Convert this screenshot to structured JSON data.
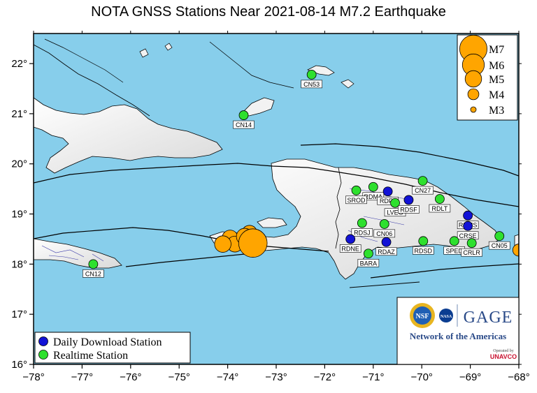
{
  "title": "NOTA GNSS Stations Near 2021-08-14 M7.2 Earthquake",
  "map": {
    "lon_range": [
      -78,
      -68
    ],
    "lat_range": [
      16,
      22.6
    ],
    "x_ticks": [
      {
        "value": -78,
        "label": "−78°"
      },
      {
        "value": -77,
        "label": "−77°"
      },
      {
        "value": -76,
        "label": "−76°"
      },
      {
        "value": -75,
        "label": "−75°"
      },
      {
        "value": -74,
        "label": "−74°"
      },
      {
        "value": -73,
        "label": "−73°"
      },
      {
        "value": -72,
        "label": "−72°"
      },
      {
        "value": -71,
        "label": "−71°"
      },
      {
        "value": -70,
        "label": "−70°"
      },
      {
        "value": -69,
        "label": "−69°"
      },
      {
        "value": -68,
        "label": "−68°"
      }
    ],
    "y_ticks": [
      {
        "value": 16,
        "label": "16°"
      },
      {
        "value": 17,
        "label": "17°"
      },
      {
        "value": 18,
        "label": "18°"
      },
      {
        "value": 19,
        "label": "19°"
      },
      {
        "value": 20,
        "label": "20°"
      },
      {
        "value": 21,
        "label": "21°"
      },
      {
        "value": 22,
        "label": "22°"
      }
    ],
    "colors": {
      "ocean": "#87ceeb",
      "land": "#f2f2f2",
      "daily": "#1212d6",
      "realtime": "#2ee02e",
      "quake": "#ffa500"
    }
  },
  "stations": [
    {
      "name": "CN53",
      "type": "realtime",
      "lon": -72.27,
      "lat": 21.78
    },
    {
      "name": "CN14",
      "type": "realtime",
      "lon": -73.67,
      "lat": 20.97
    },
    {
      "name": "CN12",
      "type": "realtime",
      "lon": -76.77,
      "lat": 18.0
    },
    {
      "name": "RDMA",
      "type": "realtime",
      "lon": -71.0,
      "lat": 19.54
    },
    {
      "name": "SROD",
      "type": "realtime",
      "lon": -71.35,
      "lat": 19.47
    },
    {
      "name": "RDF2",
      "type": "daily",
      "lon": -70.7,
      "lat": 19.45
    },
    {
      "name": "CN27",
      "type": "realtime",
      "lon": -69.98,
      "lat": 19.66
    },
    {
      "name": "LVEG",
      "type": "realtime",
      "lon": -70.55,
      "lat": 19.22
    },
    {
      "name": "RDSF",
      "type": "daily",
      "lon": -70.27,
      "lat": 19.28
    },
    {
      "name": "RDLT",
      "type": "realtime",
      "lon": -69.63,
      "lat": 19.3
    },
    {
      "name": "RDMS",
      "type": "daily",
      "lon": -69.05,
      "lat": 18.97
    },
    {
      "name": "CRSE",
      "type": "daily",
      "lon": -69.05,
      "lat": 18.76
    },
    {
      "name": "CN05",
      "type": "realtime",
      "lon": -68.4,
      "lat": 18.56
    },
    {
      "name": "RDSJ",
      "type": "realtime",
      "lon": -71.23,
      "lat": 18.82
    },
    {
      "name": "CN06",
      "type": "realtime",
      "lon": -70.77,
      "lat": 18.8
    },
    {
      "name": "RDNE",
      "type": "daily",
      "lon": -71.47,
      "lat": 18.5
    },
    {
      "name": "BARA",
      "type": "realtime",
      "lon": -71.1,
      "lat": 18.21
    },
    {
      "name": "RDAZ",
      "type": "daily",
      "lon": -70.73,
      "lat": 18.44
    },
    {
      "name": "RDSD",
      "type": "realtime",
      "lon": -69.97,
      "lat": 18.46
    },
    {
      "name": "SPED",
      "type": "realtime",
      "lon": -69.33,
      "lat": 18.46
    },
    {
      "name": "CRLR",
      "type": "realtime",
      "lon": -68.97,
      "lat": 18.42
    }
  ],
  "earthquakes": [
    {
      "lon": -74.1,
      "lat": 18.4,
      "mag": 5.0
    },
    {
      "lon": -73.95,
      "lat": 18.52,
      "mag": 4.9
    },
    {
      "lon": -73.85,
      "lat": 18.4,
      "mag": 4.9
    },
    {
      "lon": -73.65,
      "lat": 18.55,
      "mag": 5.0
    },
    {
      "lon": -73.55,
      "lat": 18.62,
      "mag": 4.8
    },
    {
      "lon": -73.48,
      "lat": 18.42,
      "mag": 7.2
    },
    {
      "lon": -68.0,
      "lat": 18.28,
      "mag": 4.2
    }
  ],
  "magnitude_legend": [
    {
      "label": "M7",
      "mag": 7
    },
    {
      "label": "M6",
      "mag": 6
    },
    {
      "label": "M5",
      "mag": 5
    },
    {
      "label": "M4",
      "mag": 4
    },
    {
      "label": "M3",
      "mag": 3
    }
  ],
  "station_legend": {
    "daily": "Daily Download Station",
    "realtime": "Realtime Station"
  },
  "logos": {
    "nsf": "NSF",
    "nasa": "NASA",
    "gage": "GAGE",
    "network": "Network of the Americas",
    "operated_by": "Operated by",
    "unavco": "UNAVCO"
  }
}
